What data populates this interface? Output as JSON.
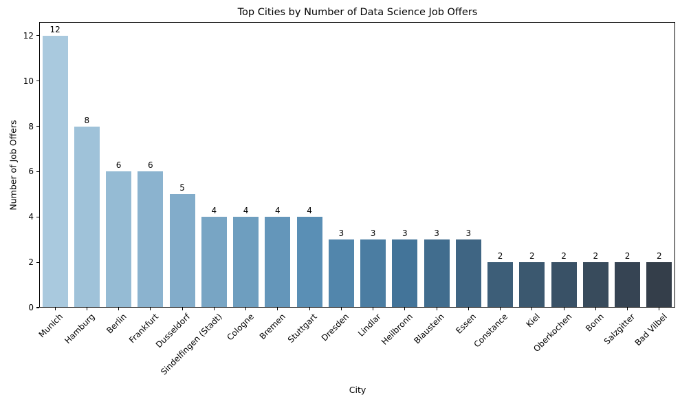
{
  "chart_data": {
    "type": "bar",
    "title": "Top Cities by Number of Data Science Job Offers",
    "xlabel": "City",
    "ylabel": "Number of Job Offers",
    "categories": [
      "Munich",
      "Hamburg",
      "Berlin",
      "Frankfurt",
      "Dusseldorf",
      "Sindelfingen (Stadt)",
      "Cologne",
      "Bremen",
      "Stuttgart",
      "Dresden",
      "Lindlar",
      "Heilbronn",
      "Blaustein",
      "Essen",
      "Constance",
      "Kiel",
      "Oberkochen",
      "Bonn",
      "Salzgitter",
      "Bad Vilbel"
    ],
    "values": [
      12,
      8,
      6,
      6,
      5,
      4,
      4,
      4,
      4,
      3,
      3,
      3,
      3,
      3,
      2,
      2,
      2,
      2,
      2,
      2
    ],
    "bar_value_labels": [
      "12",
      "8",
      "6",
      "6",
      "5",
      "4",
      "4",
      "4",
      "4",
      "3",
      "3",
      "3",
      "3",
      "3",
      "2",
      "2",
      "2",
      "2",
      "2",
      "2"
    ],
    "bar_colors": [
      "#a9c9de",
      "#9fc2d9",
      "#95bbd4",
      "#8bb3cf",
      "#82acca",
      "#78a5c4",
      "#6e9ebf",
      "#6496ba",
      "#5a8fb5",
      "#5286ac",
      "#4b7da2",
      "#437499",
      "#416d8e",
      "#3f6583",
      "#3d5e78",
      "#3b586f",
      "#395166",
      "#384b5c",
      "#364453",
      "#343e4a"
    ],
    "ylim": [
      0,
      12.6
    ],
    "yticks": [
      0,
      2,
      4,
      6,
      8,
      10,
      12
    ],
    "xtick_rotation": 45,
    "bar_width_fraction": 0.8,
    "grid": false,
    "legend": "none",
    "axis_color": "#000000",
    "background_color": "#ffffff"
  }
}
